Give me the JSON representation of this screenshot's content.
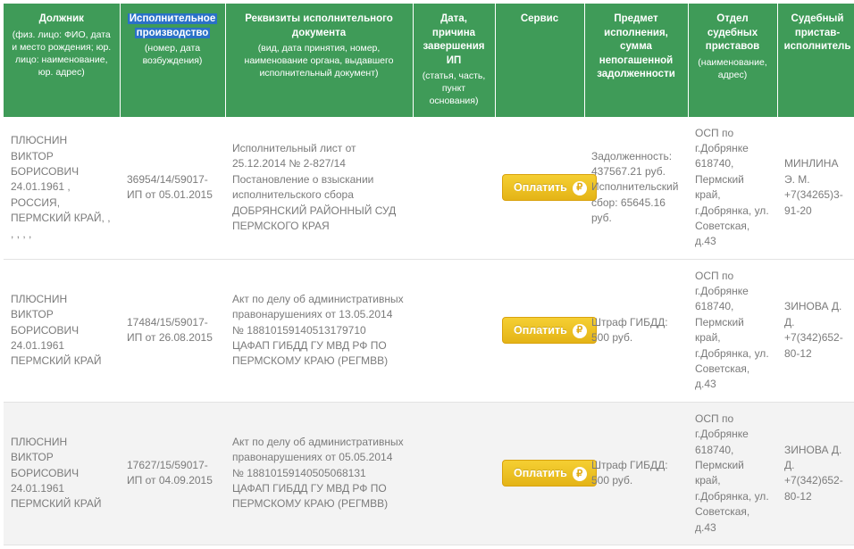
{
  "colors": {
    "header_bg": "#3f9b58",
    "header_text": "#ffffff",
    "highlight_bg": "#2a71c7",
    "row_alt_bg": "#f3f3f3",
    "cell_text": "#7b7b7b",
    "border": "#e3e3e3",
    "btn_grad_top": "#f5cf33",
    "btn_grad_bot": "#e4b417",
    "btn_border": "#d9a20d",
    "btn_text": "#ffffff",
    "rub_circle_bg": "#ffffff",
    "rub_circle_fg": "#e0a90f"
  },
  "typography": {
    "header_fontsize_pt": 9,
    "header_sub_fontsize_pt": 8,
    "cell_fontsize_pt": 9,
    "btn_fontsize_pt": 9.5
  },
  "headers": [
    {
      "main": "Должник",
      "sub": "(физ. лицо: ФИО, дата и место рождения; юр. лицо: наименование, юр. адрес)",
      "highlight": false
    },
    {
      "main": "Исполнительное производство",
      "sub": "(номер, дата возбуждения)",
      "highlight": true
    },
    {
      "main": "Реквизиты исполнительного документа",
      "sub": "(вид, дата принятия, номер, наименование органа, выдавшего исполнительный документ)",
      "highlight": false
    },
    {
      "main": "Дата, причина завершения ИП",
      "sub": "(статья, часть, пункт основания)",
      "highlight": false
    },
    {
      "main": "Сервис",
      "sub": "",
      "highlight": false
    },
    {
      "main": "Предмет исполнения, сумма непогашенной задолженности",
      "sub": "",
      "highlight": false
    },
    {
      "main": "Отдел судебных приставов",
      "sub": "(наименование, адрес)",
      "highlight": false
    },
    {
      "main": "Судебный пристав-исполнитель",
      "sub": "",
      "highlight": false
    }
  ],
  "pay_label": "Оплатить",
  "rub_symbol": "₽",
  "rows": [
    {
      "alt": false,
      "debtor": "ПЛЮСНИН ВИКТОР БОРИСОВИЧ 24.01.1961 , РОССИЯ, ПЕРМСКИЙ КРАЙ, , , , , ,",
      "case": "36954/14/59017-ИП от 05.01.2015",
      "doc": "Исполнительный лист от 25.12.2014 № 2-827/14 Постановление о взыскании исполнительского сбора ДОБРЯНСКИЙ РАЙОННЫЙ СУД ПЕРМСКОГО КРАЯ",
      "ended": "",
      "subject": "Задолженность: 437567.21 руб. Исполнительский сбор: 65645.16 руб.",
      "dept": "ОСП по г.Добрянке 618740, Пермский край, г.Добрянка, ул. Советская, д.43",
      "officer": "МИНЛИНА Э. М. +7(34265)3-91-20"
    },
    {
      "alt": false,
      "debtor": "ПЛЮСНИН ВИКТОР БОРИСОВИЧ 24.01.1961 ПЕРМСКИЙ КРАЙ",
      "case": "17484/15/59017-ИП от 26.08.2015",
      "doc": "Акт по делу об административных правонарушениях от 13.05.2014 № 18810159140513179710 ЦАФАП ГИБДД ГУ МВД РФ ПО ПЕРМСКОМУ КРАЮ (РЕГМВВ)",
      "ended": "",
      "subject": "Штраф ГИБДД: 500 руб.",
      "dept": "ОСП по г.Добрянке 618740, Пермский край, г.Добрянка, ул. Советская, д.43",
      "officer": "ЗИНОВА Д. Д. +7(342)652-80-12"
    },
    {
      "alt": true,
      "debtor": "ПЛЮСНИН ВИКТОР БОРИСОВИЧ 24.01.1961 ПЕРМСКИЙ КРАЙ",
      "case": "17627/15/59017-ИП от 04.09.2015",
      "doc": "Акт по делу об административных правонарушениях от 05.05.2014 № 18810159140505068131 ЦАФАП ГИБДД ГУ МВД РФ ПО ПЕРМСКОМУ КРАЮ (РЕГМВВ)",
      "ended": "",
      "subject": "Штраф ГИБДД: 500 руб.",
      "dept": "ОСП по г.Добрянке 618740, Пермский край, г.Добрянка, ул. Советская, д.43",
      "officer": "ЗИНОВА Д. Д. +7(342)652-80-12"
    }
  ]
}
